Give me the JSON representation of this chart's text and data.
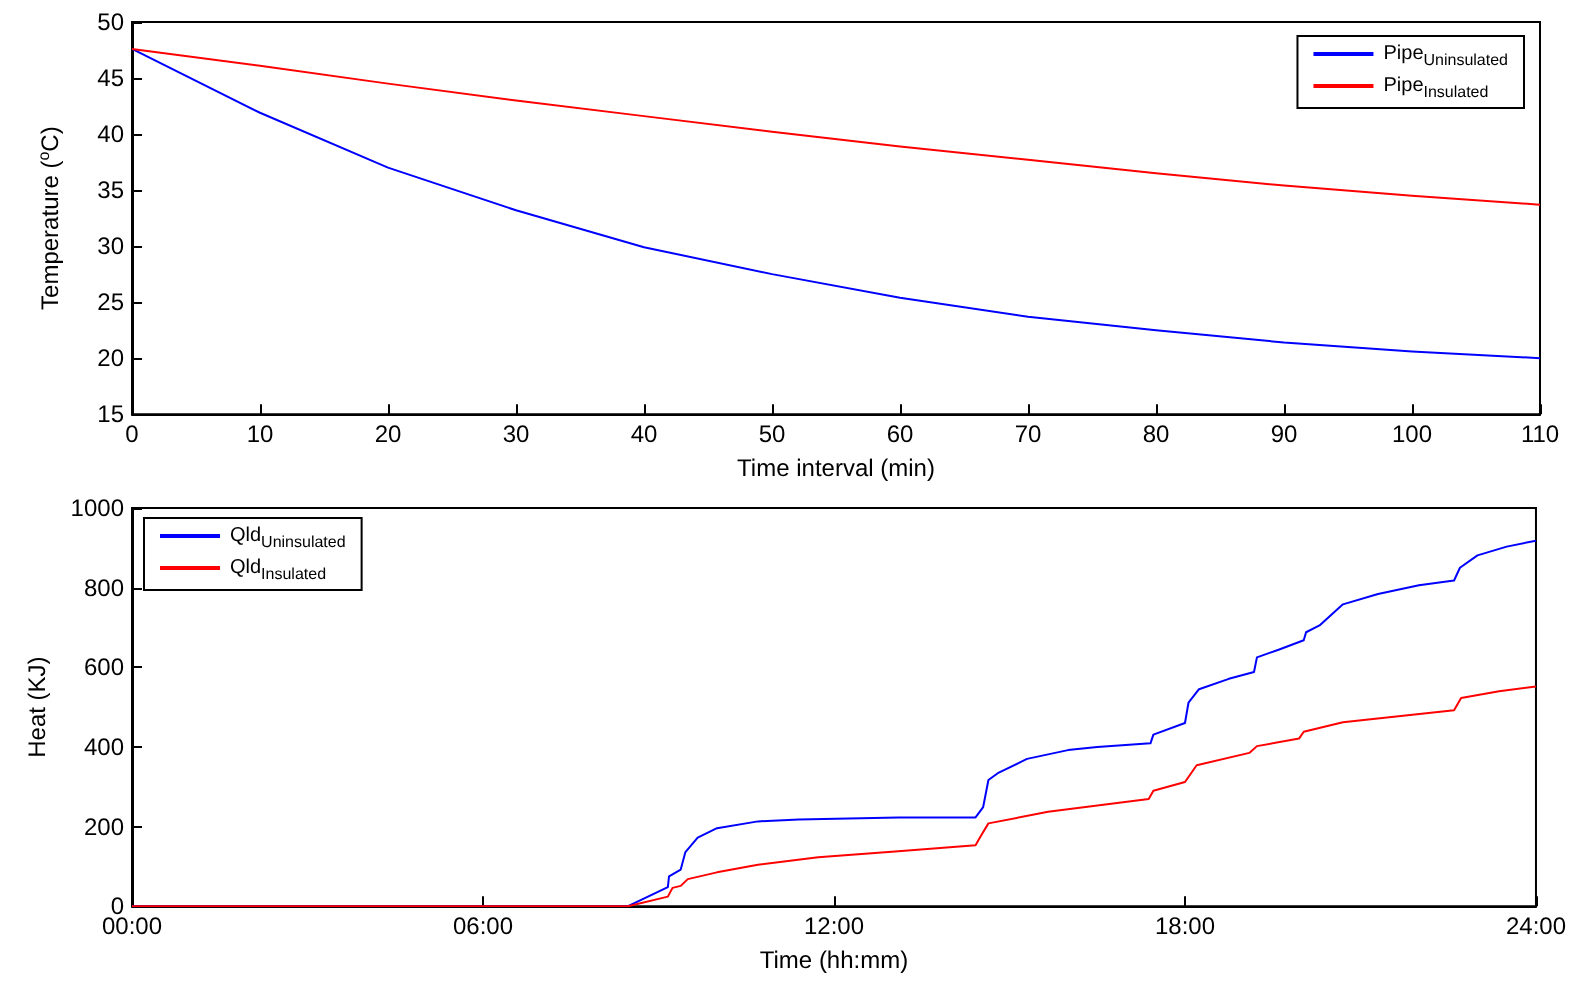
{
  "chart_data": [
    {
      "type": "line",
      "xlabel": "Time interval (min)",
      "ylabel": "Temperature ($^{o}$C)",
      "legend": "top right",
      "marker": "none",
      "x": [
        0,
        10,
        20,
        30,
        40,
        50,
        60,
        70,
        80,
        90,
        100,
        110
      ],
      "xlim": [
        0,
        110
      ],
      "ylim": [
        15,
        50
      ],
      "xticks": [
        0,
        10,
        20,
        30,
        40,
        50,
        60,
        70,
        80,
        90,
        100,
        110
      ],
      "yticks": [
        15,
        20,
        25,
        30,
        35,
        40,
        45,
        50
      ],
      "series": [
        {
          "name": "Pipe$_{Uninsulated}$",
          "color": "#0000ff",
          "values": [
            47.6,
            41.9,
            37.0,
            33.2,
            29.9,
            27.5,
            25.4,
            23.7,
            22.5,
            21.4,
            20.6,
            20.0
          ]
        },
        {
          "name": "Pipe$_{Insulated}$",
          "color": "#ff0000",
          "values": [
            47.6,
            46.1,
            44.5,
            43.0,
            41.6,
            40.2,
            38.9,
            37.7,
            36.5,
            35.4,
            34.5,
            33.7
          ]
        }
      ]
    },
    {
      "type": "line",
      "xlabel": "Time (hh:mm)",
      "ylabel": "Heat (KJ)",
      "legend": "top left",
      "marker": "none",
      "xlim": [
        0,
        24
      ],
      "ylim": [
        0,
        1000
      ],
      "xticks": [
        {
          "value": 0,
          "label": "00:00"
        },
        {
          "value": 6,
          "label": "06:00"
        },
        {
          "value": 12,
          "label": "12:00"
        },
        {
          "value": 18,
          "label": "18:00"
        },
        {
          "value": 24,
          "label": "24:00"
        }
      ],
      "yticks": [
        0,
        200,
        400,
        600,
        800,
        1000
      ],
      "series": [
        {
          "name": "Qld$_{Uninsulated}$",
          "color": "#0000ff",
          "x": [
            0,
            8.48,
            9.16,
            9.18,
            9.38,
            9.46,
            9.67,
            10.0,
            10.7,
            11.4,
            13.1,
            14.42,
            14.55,
            14.64,
            14.8,
            15.3,
            16.0,
            16.5,
            17.41,
            17.46,
            18.0,
            18.06,
            18.24,
            18.75,
            19.18,
            19.23,
            19.6,
            20.03,
            20.07,
            20.3,
            20.7,
            21.3,
            22.0,
            22.6,
            22.7,
            23.0,
            23.5,
            24.0
          ],
          "values": [
            0,
            0,
            48,
            75,
            92,
            136,
            172,
            196,
            213,
            218,
            223,
            223,
            249,
            317,
            334,
            370,
            392,
            400,
            409,
            431,
            460,
            511,
            545,
            571,
            588,
            625,
            644,
            668,
            688,
            705,
            758,
            784,
            806,
            818,
            850,
            881,
            903,
            918
          ]
        },
        {
          "name": "Qld$_{Insulated}$",
          "color": "#ff0000",
          "x": [
            0,
            8.48,
            9.16,
            9.24,
            9.38,
            9.5,
            10.0,
            10.7,
            11.73,
            13.1,
            14.42,
            14.5,
            14.64,
            15.66,
            17.38,
            17.46,
            18.0,
            18.2,
            19.1,
            19.23,
            19.95,
            20.03,
            20.7,
            22.6,
            22.72,
            23.37,
            24.0
          ],
          "values": [
            0,
            0,
            24,
            46,
            51,
            68,
            85,
            104,
            123,
            138,
            153,
            174,
            208,
            237,
            269,
            290,
            312,
            354,
            385,
            402,
            421,
            438,
            462,
            492,
            523,
            540,
            552
          ]
        }
      ]
    }
  ]
}
